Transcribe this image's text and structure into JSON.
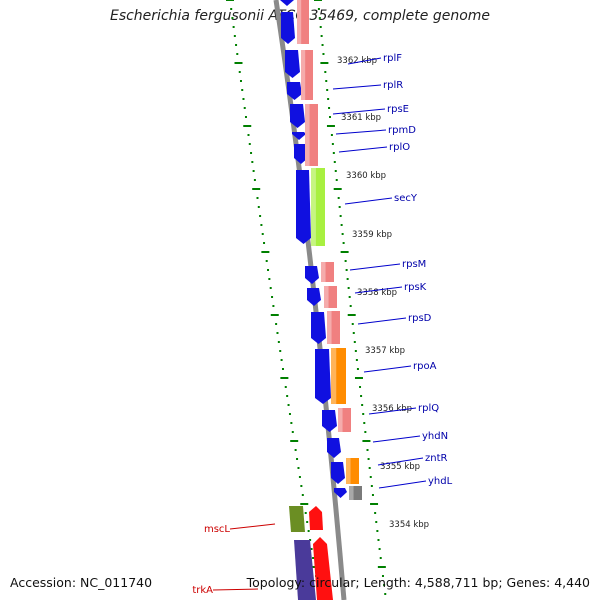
{
  "title": "Escherichia fergusonii ATCC 35469, complete genome",
  "footer": {
    "accession": "Accession: NC_011740",
    "topology": "Topology: circular; Length: 4,588,711 bp; Genes: 4,440"
  },
  "colors": {
    "backbone": "#8a8a8a",
    "forward_gene": "#1010e0",
    "ribosomal": "#f08080",
    "secretion": "#a8f040",
    "transcription": "#ff8c00",
    "transport": "#7a7a7a",
    "mechanosensitive": "#6b8e23",
    "trk": "#ff1010",
    "trk_fwd": "#4a3a9a",
    "tick": "#008000",
    "label_line_blue": "#0000cc",
    "label_line_red": "#cc0000"
  },
  "kbp_labels": [
    {
      "text": "3362 kbp"
    },
    {
      "text": "3361 kbp"
    },
    {
      "text": "3360 kbp"
    },
    {
      "text": "3359 kbp"
    },
    {
      "text": "3358 kbp"
    },
    {
      "text": "3357 kbp"
    },
    {
      "text": "3356 kbp"
    },
    {
      "text": "3355 kbp"
    },
    {
      "text": "3354 kbp"
    }
  ],
  "gene_labels": [
    {
      "text": "rplF",
      "color": "#0000aa"
    },
    {
      "text": "rplR",
      "color": "#0000aa"
    },
    {
      "text": "rpsE",
      "color": "#0000aa"
    },
    {
      "text": "rpmD",
      "color": "#0000aa"
    },
    {
      "text": "rplO",
      "color": "#0000aa"
    },
    {
      "text": "secY",
      "color": "#0000aa"
    },
    {
      "text": "rpsM",
      "color": "#0000aa"
    },
    {
      "text": "rpsK",
      "color": "#0000aa"
    },
    {
      "text": "rpsD",
      "color": "#0000aa"
    },
    {
      "text": "rpoA",
      "color": "#0000aa"
    },
    {
      "text": "rplQ",
      "color": "#0000aa"
    },
    {
      "text": "yhdN",
      "color": "#0000aa"
    },
    {
      "text": "zntR",
      "color": "#0000aa"
    },
    {
      "text": "yhdL",
      "color": "#0000aa"
    },
    {
      "text": "mscL",
      "color": "#cc0000"
    },
    {
      "text": "trkA",
      "color": "#cc0000"
    }
  ]
}
